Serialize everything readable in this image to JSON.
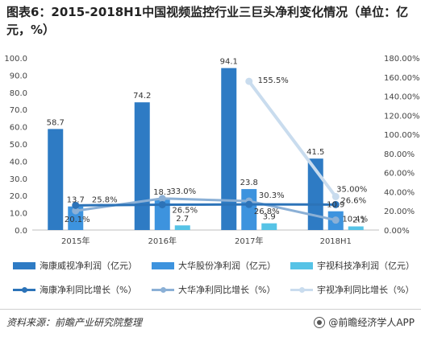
{
  "title": "图表6：2015-2018H1中国视频监控行业三巨头净利变化情况（单位：亿元，%）",
  "source": "资料来源：前瞻产业研究院整理",
  "brand": "@前瞻经济学人APP",
  "colors": {
    "hikvision_bar": "#2E7BC4",
    "dahua_bar": "#3D93DE",
    "uniview_bar": "#56C3E6",
    "hikvision_line": "#2C73B8",
    "dahua_line": "#8BB0D6",
    "uniview_line": "#C9DCEE"
  },
  "legend": [
    {
      "label": "海康威视净利润（亿元）",
      "kind": "bar",
      "color": "#2E7BC4"
    },
    {
      "label": "大华股份净利润（亿元）",
      "kind": "bar",
      "color": "#3D93DE"
    },
    {
      "label": "宇视科技净利润（亿元）",
      "kind": "bar",
      "color": "#56C3E6"
    },
    {
      "label": "海康净利同比增长（%）",
      "kind": "line",
      "color": "#2C73B8"
    },
    {
      "label": "大华净利同比增长（%）",
      "kind": "line",
      "color": "#8BB0D6"
    },
    {
      "label": "宇视净利同比增长（%）",
      "kind": "line",
      "color": "#C9DCEE"
    }
  ],
  "chart_data": {
    "type": "bar",
    "categories": [
      "2015年",
      "2016年",
      "2017年",
      "2018H1"
    ],
    "left_axis": {
      "min": 0,
      "max": 100,
      "step": 10,
      "tick_labels": [
        "0.0",
        "10.0",
        "20.0",
        "30.0",
        "40.0",
        "50.0",
        "60.0",
        "70.0",
        "80.0",
        "90.0",
        "100.0"
      ]
    },
    "right_axis": {
      "min": 0,
      "max": 180,
      "step": 20,
      "tick_labels": [
        "0.00%",
        "20.00%",
        "40.00%",
        "60.00%",
        "80.00%",
        "100.00%",
        "120.00%",
        "140.00%",
        "160.00%",
        "180.00%"
      ]
    },
    "bars": [
      {
        "name": "海康威视净利润（亿元）",
        "values": [
          58.7,
          74.2,
          94.1,
          41.5
        ],
        "labels": [
          "58.7",
          "74.2",
          "94.1",
          "41.5"
        ]
      },
      {
        "name": "大华股份净利润（亿元）",
        "values": [
          13.7,
          18.3,
          23.8,
          10.9
        ],
        "labels": [
          "13.7",
          "18.3",
          "23.8",
          "10.9"
        ]
      },
      {
        "name": "宇视科技净利润（亿元）",
        "values": [
          null,
          2.7,
          3.9,
          2.1
        ],
        "labels": [
          "",
          "2.7",
          "3.9",
          "2.1"
        ]
      }
    ],
    "lines": [
      {
        "name": "海康净利同比增长（%）",
        "values": [
          25.8,
          26.5,
          26.8,
          26.6
        ],
        "labels": [
          "25.8%",
          "26.5%",
          "26.8%",
          "26.6%"
        ]
      },
      {
        "name": "大华净利同比增长（%）",
        "values": [
          20.1,
          33.0,
          30.3,
          10.4
        ],
        "labels": [
          "20.1%",
          "33.0%",
          "30.3%",
          "10.4%"
        ]
      },
      {
        "name": "宇视净利同比增长（%）",
        "values": [
          null,
          null,
          155.5,
          35.0
        ],
        "labels": [
          "",
          "",
          "155.5%",
          "35.00%"
        ]
      }
    ],
    "grid": false,
    "legend_position": "bottom"
  }
}
